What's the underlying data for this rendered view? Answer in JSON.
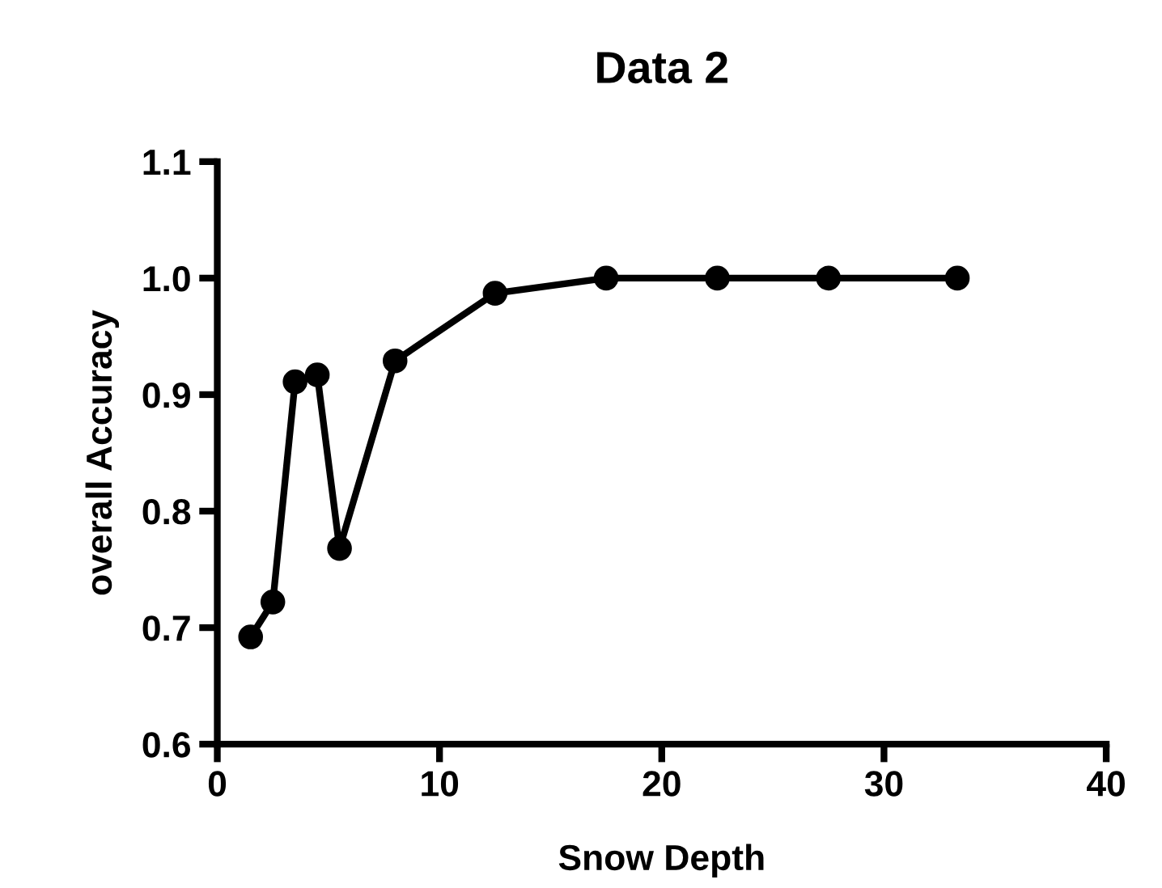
{
  "chart_data": {
    "type": "line",
    "title": "Data 2",
    "xlabel": "Snow Depth",
    "ylabel": "overall Accuracy",
    "x": [
      1.5,
      2.5,
      3.5,
      4.5,
      5.5,
      8,
      12.5,
      17.5,
      22.5,
      27.5,
      33.3
    ],
    "series": [
      {
        "color": "#000000",
        "values": [
          0.692,
          0.722,
          0.911,
          0.917,
          0.768,
          0.929,
          0.987,
          1.0,
          1.0,
          1.0,
          1.0
        ]
      }
    ],
    "xlim": [
      0,
      40
    ],
    "xticks": [
      0,
      10,
      20,
      30,
      40
    ],
    "ylim": [
      0.6,
      1.1
    ],
    "yticks": [
      {
        "value": 0.6,
        "label": "0.6"
      },
      {
        "value": 0.7,
        "label": "0.7"
      },
      {
        "value": 0.8,
        "label": "0.8"
      },
      {
        "value": 0.9,
        "label": "0.9"
      },
      {
        "value": 1.0,
        "label": "1.0"
      },
      {
        "value": 1.1,
        "label": "1.1"
      }
    ],
    "marker": "circle",
    "line_style": "solid",
    "grid": false,
    "legend": false
  }
}
